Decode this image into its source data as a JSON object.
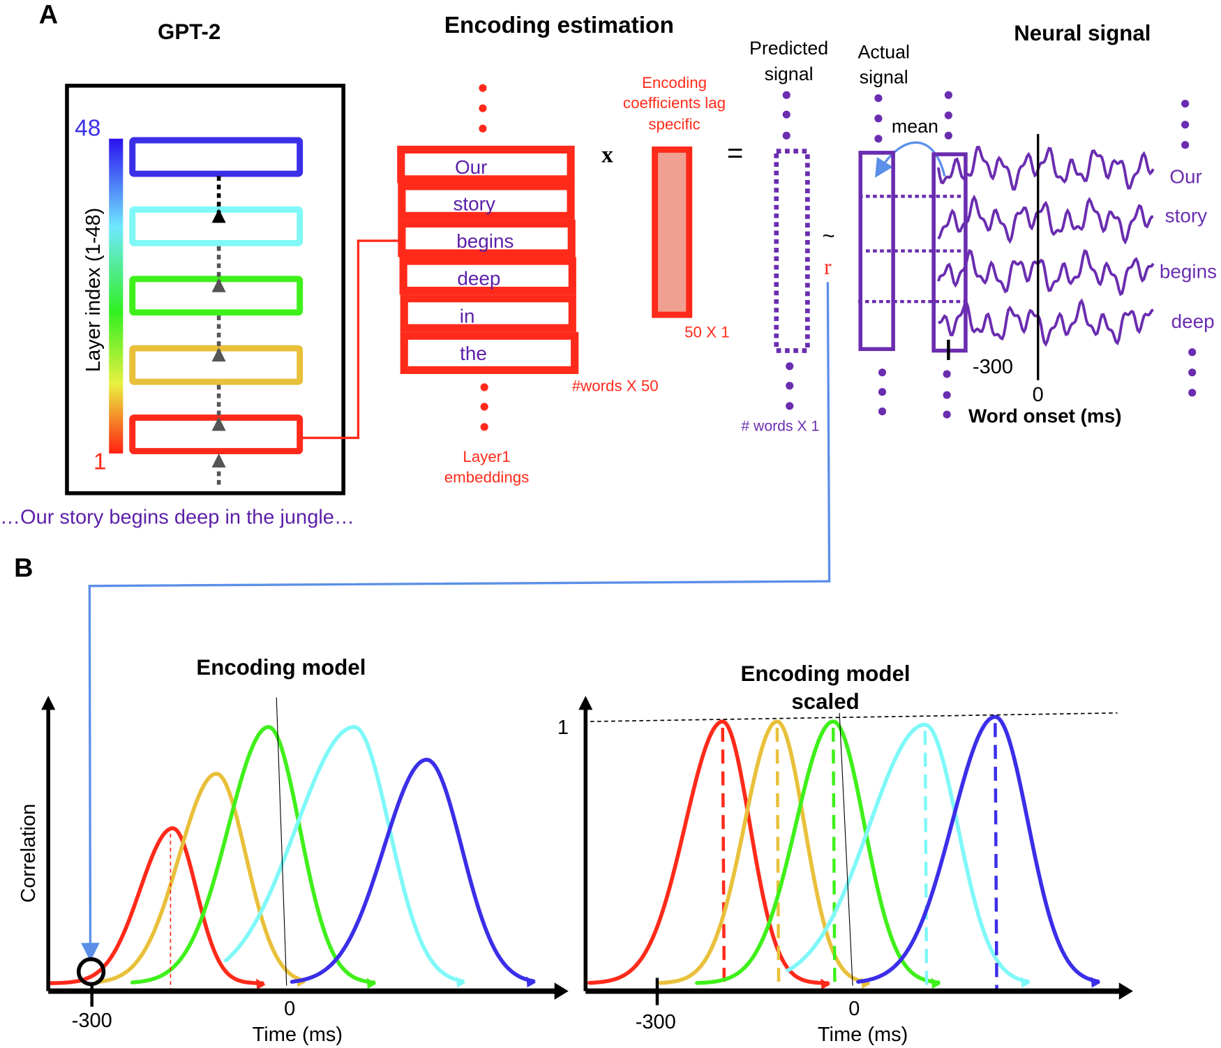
{
  "colors": {
    "layer48": "#3b2ee8",
    "layer_cyan": "#7ff8f8",
    "layer_green": "#3ff01a",
    "layer_yellow": "#e8c03a",
    "layer1": "#ff2a1a",
    "purple": "#6a2db0",
    "connector_blue": "#5b8fe8",
    "coef_fill": "#f0a090"
  },
  "panel_a": {
    "label": "A",
    "gpt2": {
      "title": "GPT-2",
      "layer_max": "48",
      "layer_min": "1",
      "axis_label": "Layer index (1-48)",
      "sentence": "…Our story begins deep in the jungle…"
    },
    "encoding": {
      "title": "Encoding estimation",
      "words": [
        "Our",
        "story",
        "begins",
        "deep",
        "in",
        "the"
      ],
      "matrix_dim": "#words X 50",
      "layer_label_1": "Layer1",
      "layer_label_2": "embeddings",
      "times": "x",
      "coef_label_1": "Encoding",
      "coef_label_2": "coefficients lag",
      "coef_label_3": "specific",
      "coef_dim": "50 X 1",
      "equals": "=",
      "pred_label_1": "Predicted",
      "pred_label_2": "signal",
      "pred_dim": "# words X 1",
      "approx": "~",
      "r": "r"
    },
    "neural": {
      "title": "Neural signal",
      "actual_label_1": "Actual",
      "actual_label_2": "signal",
      "mean": "mean",
      "words": [
        "Our",
        "story",
        "begins",
        "deep"
      ],
      "tick_neg": "-300",
      "tick_zero": "0",
      "xlabel": "Word onset (ms)"
    }
  },
  "panel_b": {
    "label": "B",
    "left": {
      "title": "Encoding model",
      "ylabel": "Correlation",
      "tick_neg": "-300",
      "tick_zero": "0",
      "xlabel": "Time (ms)"
    },
    "right": {
      "title_1": "Encoding model",
      "title_2": "scaled",
      "ytick": "1",
      "tick_neg": "-300",
      "tick_zero": "0",
      "xlabel": "Time (ms)"
    }
  }
}
